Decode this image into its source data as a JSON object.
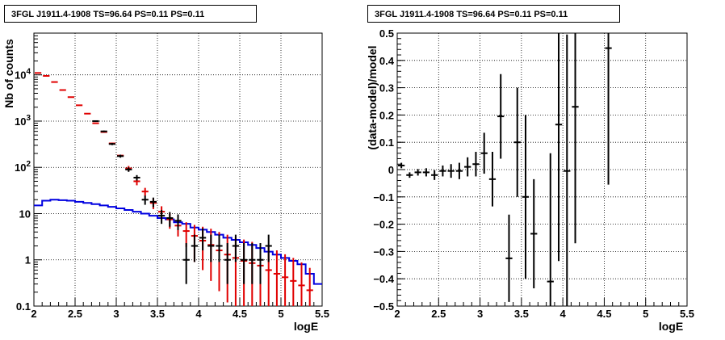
{
  "chart_data": [
    {
      "type": "histogram",
      "title": "3FGL J1911.4-1908 TS=96.64 PS=0.11 PS=0.11",
      "xlabel": "logE",
      "ylabel": "Nb of counts",
      "xlim": [
        2,
        5.5
      ],
      "ylim": [
        0.1,
        80000
      ],
      "yscale": "log",
      "grid": true,
      "x_ticks": [
        "2",
        "2.5",
        "3",
        "3.5",
        "4",
        "4.5",
        "5",
        "5.5"
      ],
      "y_ticks": [
        "0.1",
        "1",
        "10",
        "10^2",
        "10^3",
        "10^4"
      ],
      "bin_edges": [
        2.0,
        2.1,
        2.2,
        2.3,
        2.4,
        2.5,
        2.6,
        2.7,
        2.8,
        2.9,
        3.0,
        3.1,
        3.2,
        3.3,
        3.4,
        3.5,
        3.6,
        3.7,
        3.8,
        3.9,
        4.0,
        4.1,
        4.2,
        4.3,
        4.4,
        4.5,
        4.6,
        4.7,
        4.8,
        4.9,
        5.0,
        5.1,
        5.2,
        5.3,
        5.4,
        5.5
      ],
      "series": [
        {
          "color": "#000000",
          "style": "errorbar",
          "x": [
            2.75,
            2.85,
            2.95,
            3.05,
            3.15,
            3.25,
            3.35,
            3.45,
            3.55,
            3.65,
            3.75,
            3.85,
            3.95,
            4.05,
            4.15,
            4.25,
            4.35,
            4.45,
            4.55,
            4.65,
            4.75,
            4.85
          ],
          "y": [
            1000,
            600,
            320,
            175,
            90,
            60,
            20,
            18,
            9,
            8,
            7,
            1,
            2,
            3,
            2,
            2,
            1,
            2,
            1,
            1,
            1,
            2
          ],
          "yerr_low": [
            30,
            25,
            18,
            13,
            10,
            8,
            4.5,
            4.2,
            3,
            2.8,
            2.6,
            0.7,
            1.1,
            1.4,
            1.1,
            1.1,
            0.7,
            1.1,
            0.7,
            0.7,
            0.7,
            1.1
          ],
          "yerr_high": [
            30,
            25,
            18,
            13,
            10,
            8,
            4.5,
            4.2,
            3,
            2.8,
            2.6,
            1.3,
            1.5,
            1.8,
            1.5,
            1.5,
            1.3,
            1.5,
            1.3,
            1.3,
            1.3,
            1.5
          ]
        },
        {
          "color": "#e00000",
          "style": "errorbar",
          "x": [
            2.05,
            2.15,
            2.25,
            2.35,
            2.45,
            2.55,
            2.65,
            2.75,
            2.85,
            2.95,
            3.05,
            3.15,
            3.25,
            3.35,
            3.45,
            3.55,
            3.65,
            3.75,
            3.85,
            3.95,
            4.05,
            4.15,
            4.25,
            4.35,
            4.45,
            4.55,
            4.65,
            4.75,
            4.85,
            4.95,
            5.05,
            5.15,
            5.25,
            5.35
          ],
          "y": [
            11000,
            9500,
            7000,
            4700,
            3300,
            2200,
            1450,
            900,
            580,
            330,
            180,
            95,
            50,
            30,
            17,
            11,
            7.5,
            5.5,
            4.2,
            3.3,
            2.6,
            2.1,
            1.6,
            1.3,
            1.1,
            0.95,
            0.85,
            0.75,
            0.6,
            0.5,
            0.42,
            0.35,
            0.28,
            0.22
          ],
          "yerr_low": [
            0,
            0,
            0,
            0,
            0,
            0,
            0,
            0,
            0,
            0,
            0,
            12,
            9,
            6,
            4.5,
            3.4,
            2.8,
            2.3,
            2.3,
            2.4,
            2.0,
            1.75,
            1.39,
            1.18,
            1.03,
            0.9,
            0.81,
            0.72,
            0.58,
            0.49,
            0.41,
            0.345,
            0.276,
            0.218
          ],
          "yerr_high": [
            0,
            0,
            0,
            0,
            0,
            0,
            0,
            0,
            0,
            0,
            0,
            12,
            9,
            6,
            4.5,
            3.4,
            2.8,
            2.3,
            2.3,
            2.4,
            2.6,
            2.6,
            2.4,
            2.2,
            2.0,
            1.8,
            1.6,
            1.5,
            1.3,
            1.1,
            0.9,
            0.75,
            0.6,
            0.45
          ]
        },
        {
          "color": "#0000e0",
          "style": "step",
          "values": [
            15,
            19,
            20,
            19.5,
            19,
            18,
            17,
            16,
            15,
            14,
            13,
            12,
            11,
            10,
            9,
            8,
            7.5,
            6.5,
            6,
            5,
            4.5,
            4,
            3.5,
            3,
            2.7,
            2.4,
            2.1,
            1.8,
            1.5,
            1.3,
            1.1,
            0.95,
            0.8,
            0.5,
            0.3
          ]
        }
      ]
    },
    {
      "type": "scatter",
      "title": "3FGL J1911.4-1908 TS=96.64 PS=0.11 PS=0.11",
      "xlabel": "logE",
      "ylabel": "(data-model)/model",
      "xlim": [
        2,
        5.5
      ],
      "ylim": [
        -0.5,
        0.5
      ],
      "grid": true,
      "x_ticks": [
        "2",
        "2.5",
        "3",
        "3.5",
        "4",
        "4.5",
        "5",
        "5.5"
      ],
      "y_ticks": [
        "−0.5",
        "−0.4",
        "−0.3",
        "−0.2",
        "−0.1",
        "0",
        "0.1",
        "0.2",
        "0.3",
        "0.4",
        "0.5"
      ],
      "series": [
        {
          "color": "#000000",
          "style": "errorbar",
          "x": [
            2.05,
            2.15,
            2.25,
            2.35,
            2.45,
            2.55,
            2.65,
            2.75,
            2.85,
            2.95,
            3.05,
            3.15,
            3.25,
            3.35,
            3.45,
            3.55,
            3.65,
            3.85,
            3.95,
            4.05,
            4.15,
            4.55
          ],
          "y": [
            0.015,
            -0.02,
            -0.01,
            -0.01,
            -0.02,
            -0.005,
            -0.005,
            -0.005,
            0.01,
            0.02,
            0.06,
            -0.035,
            0.195,
            -0.325,
            0.1,
            -0.1,
            -0.235,
            -0.41,
            0.165,
            -0.005,
            0.23,
            0.445
          ],
          "yerr": [
            0.01,
            0.01,
            0.012,
            0.015,
            0.018,
            0.02,
            0.025,
            0.03,
            0.035,
            0.045,
            0.075,
            0.1,
            0.155,
            0.16,
            0.2,
            0.3,
            0.2,
            0.47,
            0.5,
            0.5,
            0.5,
            0.5
          ]
        }
      ]
    }
  ]
}
